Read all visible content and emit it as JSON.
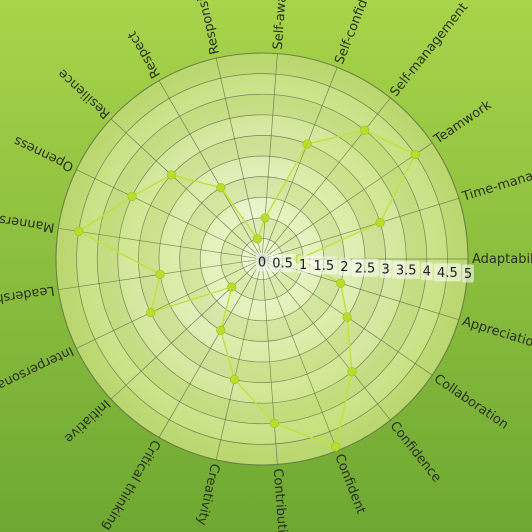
{
  "chart_data": {
    "type": "radar",
    "title": "",
    "categories": [
      "Adaptability",
      "Appreciation for others",
      "Collaboration",
      "Confidence",
      "Confident",
      "Contribution",
      "Creativity",
      "Critical thinking",
      "Initiative",
      "Interpersonal skills",
      "Leadership",
      "Manners",
      "Openness",
      "Resilience",
      "Respect",
      "Responsibility",
      "Self-awareness",
      "Self-confidence",
      "Self-management",
      "Teamwork",
      "Time-management"
    ],
    "series": [
      {
        "name": "",
        "values": [
          0.9,
          2.0,
          2.5,
          3.5,
          4.9,
          4.0,
          3.0,
          2.0,
          1.0,
          3.0,
          2.5,
          4.5,
          3.5,
          3.0,
          2.0,
          0.5,
          1.0,
          3.0,
          4.0,
          4.5,
          3.0
        ]
      }
    ],
    "rlim": [
      0,
      5
    ],
    "ticks": [
      "0",
      "0.5",
      "1",
      "1.5",
      "2",
      "2.5",
      "3",
      "3.5",
      "4",
      "4.5",
      "5"
    ],
    "grid": true,
    "colors": {
      "background_top": "#a8d44a",
      "background_bottom": "#6ea832",
      "disc_center": "#f7fbe6",
      "disc_edge": "#c2de78",
      "grid": "#5d6b4a",
      "series": "#bde33c",
      "point": "#b6de2a"
    }
  }
}
